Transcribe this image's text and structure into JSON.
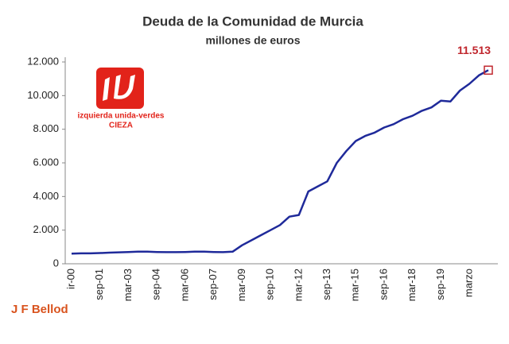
{
  "chart_data": {
    "type": "line",
    "title": "Deuda de la Comunidad de Murcia",
    "subtitle": "millones de euros",
    "categories": [
      "ir-00",
      null,
      null,
      "sep-01",
      null,
      null,
      "mar-03",
      null,
      null,
      "sep-04",
      null,
      null,
      "mar-06",
      null,
      null,
      "sep-07",
      null,
      null,
      "mar-09",
      null,
      null,
      "sep-10",
      null,
      null,
      "mar-12",
      null,
      null,
      "sep-13",
      null,
      null,
      "mar-15",
      null,
      null,
      "sep-16",
      null,
      null,
      "mar-18",
      null,
      null,
      "sep-19",
      null,
      null,
      "marzo",
      null,
      null
    ],
    "values": [
      600,
      620,
      620,
      640,
      660,
      680,
      700,
      720,
      720,
      700,
      690,
      690,
      700,
      720,
      720,
      700,
      690,
      720,
      1100,
      1400,
      1700,
      2000,
      2300,
      2800,
      2900,
      4300,
      4600,
      4900,
      6000,
      6700,
      7300,
      7600,
      7800,
      8100,
      8300,
      8600,
      8800,
      9100,
      9300,
      9700,
      9650,
      10300,
      10700,
      11200,
      11513
    ],
    "value_labels": [
      null,
      null,
      null,
      null,
      null,
      null,
      null,
      null,
      null,
      null,
      null,
      null,
      null,
      null,
      null,
      null,
      null,
      null,
      null,
      null,
      null,
      null,
      null,
      null,
      null,
      null,
      null,
      null,
      null,
      null,
      null,
      null,
      null,
      null,
      null,
      null,
      null,
      null,
      null,
      null,
      null,
      null,
      null,
      null,
      "11.513"
    ],
    "color": "#1f2a9a",
    "ylim": [
      0,
      12000
    ],
    "yticks": [
      0,
      {
        "value": 2000,
        "label": "2.000"
      },
      {
        "value": 4000,
        "label": "4.000"
      },
      {
        "value": 6000,
        "label": "6.000"
      },
      {
        "value": 8000,
        "label": "8.000"
      },
      {
        "value": 10000,
        "label": "10.000"
      },
      {
        "value": 12000,
        "label": "12.000"
      }
    ],
    "grid": false,
    "logo_text": "izquierda unida-verdes",
    "logo_place": "CIEZA",
    "author": "J F Bellod"
  }
}
